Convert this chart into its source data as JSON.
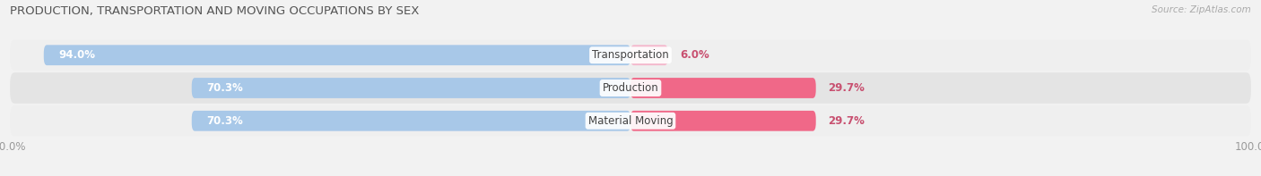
{
  "title": "PRODUCTION, TRANSPORTATION AND MOVING OCCUPATIONS BY SEX",
  "source": "Source: ZipAtlas.com",
  "categories": [
    "Transportation",
    "Production",
    "Material Moving"
  ],
  "male_values": [
    94.0,
    70.3,
    70.3
  ],
  "female_values": [
    6.0,
    29.7,
    29.7
  ],
  "male_color": "#a8c8e8",
  "female_color_light": "#f4b8cc",
  "female_color_dark": "#f06888",
  "row_bg_light": "#efefef",
  "row_bg_dark": "#e4e4e4",
  "bar_bg_color": "#dcdcdc",
  "fig_bg": "#f2f2f2",
  "male_label_color": "white",
  "female_label_color": "#c85070",
  "axis_tick_color": "#999999",
  "title_color": "#555555",
  "source_color": "#aaaaaa",
  "cat_label_color": "#444444",
  "title_fontsize": 9.5,
  "source_fontsize": 7.5,
  "bar_label_fontsize": 8.5,
  "category_fontsize": 8.5,
  "axis_fontsize": 8.5,
  "legend_fontsize": 8.5,
  "figsize": [
    14.06,
    1.97
  ],
  "dpi": 100
}
